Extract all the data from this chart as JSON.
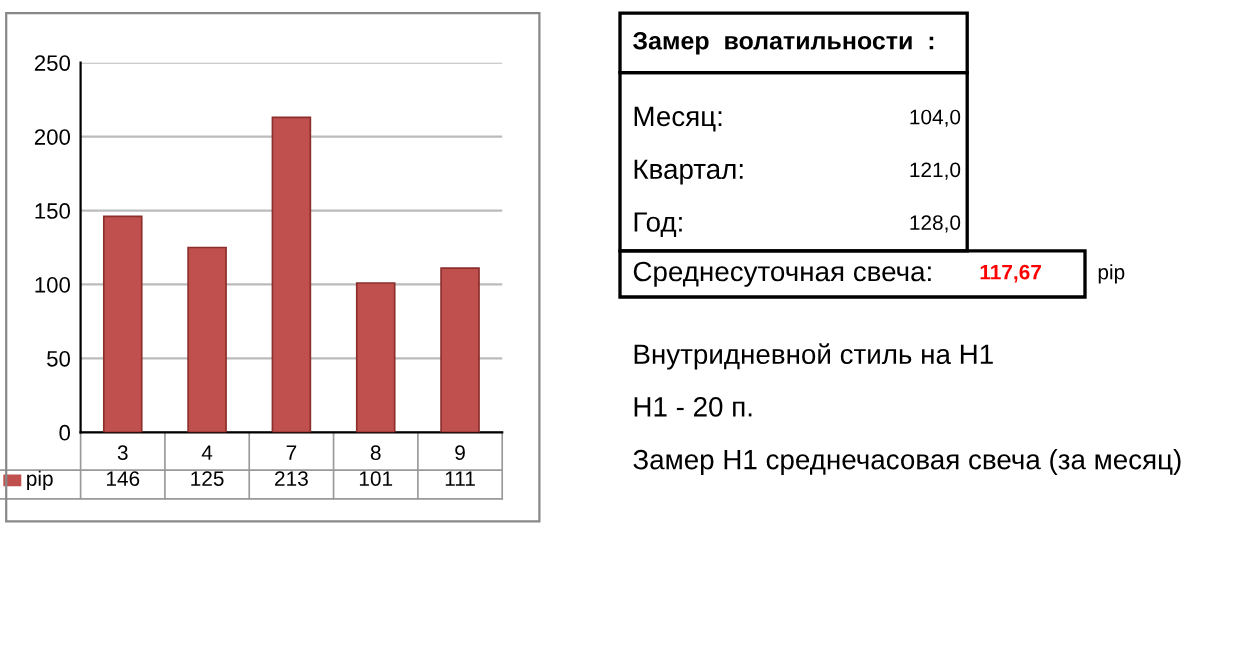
{
  "chart_data": {
    "type": "bar",
    "categories": [
      "3",
      "4",
      "7",
      "8",
      "9"
    ],
    "series": [
      {
        "name": "pip",
        "color": "#c0504d",
        "values": [
          146,
          125,
          213,
          101,
          111
        ]
      }
    ],
    "ylim": [
      0,
      250
    ],
    "yticks": [
      0,
      50,
      100,
      150,
      200,
      250
    ],
    "grid": "y",
    "legend": "bottom",
    "data_labels": true,
    "annotations": [
      "Замер  волатильности  :",
      "Месяц:",
      "104,0",
      "Квартал:",
      "121,0",
      "Год:",
      "128,0",
      "Среднесуточная свеча:",
      "117,67",
      "pip",
      "Внутридневной стиль на H1",
      "H1 - 20 п.",
      "Замер H1 среднечасовая свеча (за месяц)"
    ]
  }
}
